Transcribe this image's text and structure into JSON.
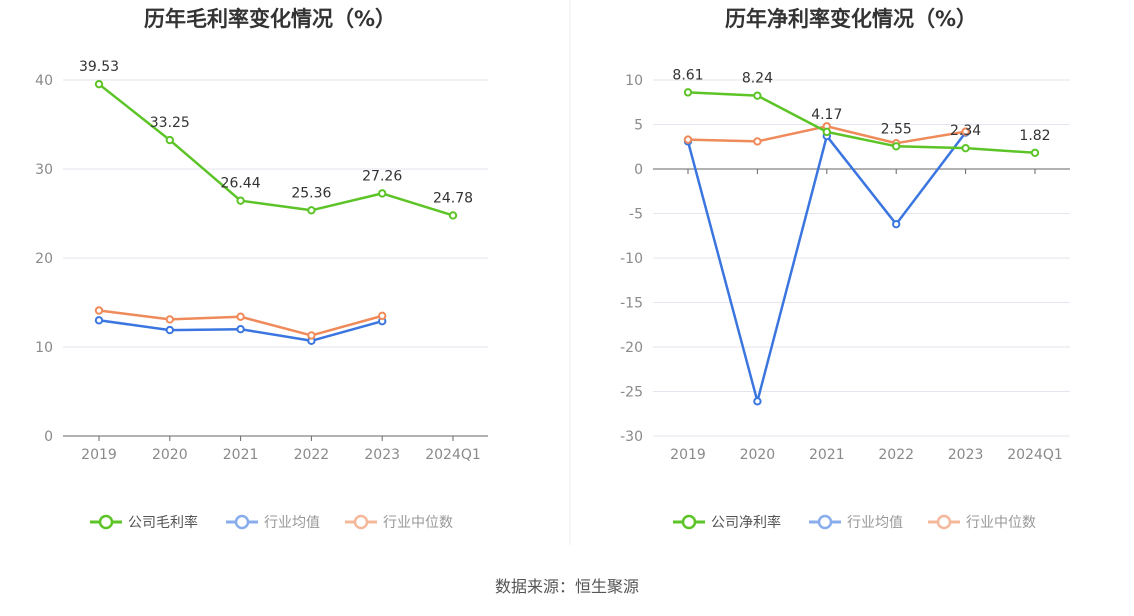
{
  "source": "数据来源：恒生聚源",
  "colors": {
    "company": "#5cc427",
    "avg": "#3b76e0",
    "median": "#ef8a5a",
    "grid": "#e3e6ee",
    "axis": "#666666"
  },
  "chart_data": [
    {
      "type": "line",
      "title": "历年毛利率变化情况（%）",
      "categories": [
        "2019",
        "2020",
        "2021",
        "2022",
        "2023",
        "2024Q1"
      ],
      "ylim": [
        0,
        40
      ],
      "yticks": [
        0,
        10,
        20,
        30,
        40
      ],
      "legend_position": "bottom",
      "grid": true,
      "series": [
        {
          "name": "公司毛利率",
          "key": "company",
          "values": [
            39.53,
            33.25,
            26.44,
            25.36,
            27.26,
            24.78
          ],
          "labels": [
            "39.53",
            "33.25",
            "26.44",
            "25.36",
            "27.26",
            "24.78"
          ]
        },
        {
          "name": "行业均值",
          "key": "avg",
          "values": [
            13.0,
            11.9,
            12.0,
            10.7,
            12.9,
            null
          ]
        },
        {
          "name": "行业中位数",
          "key": "median",
          "values": [
            14.1,
            13.1,
            13.4,
            11.3,
            13.5,
            null
          ]
        }
      ]
    },
    {
      "type": "line",
      "title": "历年净利率变化情况（%）",
      "categories": [
        "2019",
        "2020",
        "2021",
        "2022",
        "2023",
        "2024Q1"
      ],
      "ylim": [
        -30,
        10
      ],
      "yticks": [
        10,
        5,
        0,
        -5,
        -10,
        -15,
        -20,
        -25,
        -30
      ],
      "legend_position": "bottom",
      "grid": true,
      "series": [
        {
          "name": "公司净利率",
          "key": "company",
          "values": [
            8.61,
            8.24,
            4.17,
            2.55,
            2.34,
            1.82
          ],
          "labels": [
            "8.61",
            "8.24",
            "4.17",
            "2.55",
            "2.34",
            "1.82"
          ]
        },
        {
          "name": "行业均值",
          "key": "avg",
          "values": [
            3.1,
            -26.1,
            3.7,
            -6.2,
            4.1,
            null
          ]
        },
        {
          "name": "行业中位数",
          "key": "median",
          "values": [
            3.3,
            3.1,
            4.8,
            2.9,
            4.2,
            null
          ]
        }
      ]
    }
  ]
}
